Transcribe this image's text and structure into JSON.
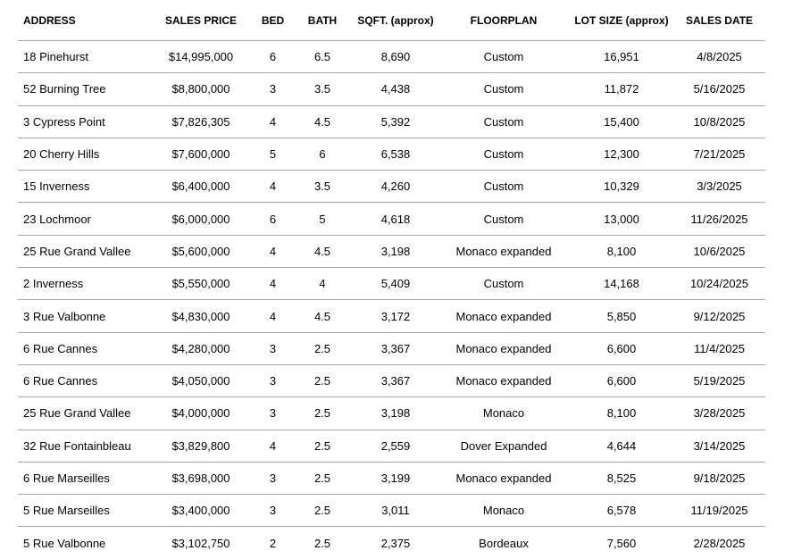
{
  "table": {
    "header": [
      "ADDRESS",
      "SALES PRICE",
      "BED",
      "BATH",
      "SQFT. (approx)",
      "FLOORPLAN",
      "LOT SIZE (approx)",
      "SALES DATE"
    ],
    "rows": [
      [
        "18 Pinehurst",
        "$14,995,000",
        "6",
        "6.5",
        "8,690",
        "Custom",
        "16,951",
        "4/8/2025"
      ],
      [
        "52 Burning Tree",
        "$8,800,000",
        "3",
        "3.5",
        "4,438",
        "Custom",
        "11,872",
        "5/16/2025"
      ],
      [
        "3 Cypress Point",
        "$7,826,305",
        "4",
        "4.5",
        "5,392",
        "Custom",
        "15,400",
        "10/8/2025"
      ],
      [
        "20 Cherry Hills",
        "$7,600,000",
        "5",
        "6",
        "6,538",
        "Custom",
        "12,300",
        "7/21/2025"
      ],
      [
        "15 Inverness",
        "$6,400,000",
        "4",
        "3.5",
        "4,260",
        "Custom",
        "10,329",
        "3/3/2025"
      ],
      [
        "23 Lochmoor",
        "$6,000,000",
        "6",
        "5",
        "4,618",
        "Custom",
        "13,000",
        "11/26/2025"
      ],
      [
        "25 Rue Grand Vallee",
        "$5,600,000",
        "4",
        "4.5",
        "3,198",
        "Monaco expanded",
        "8,100",
        "10/6/2025"
      ],
      [
        "2 Inverness",
        "$5,550,000",
        "4",
        "4",
        "5,409",
        "Custom",
        "14,168",
        "10/24/2025"
      ],
      [
        "3 Rue Valbonne",
        "$4,830,000",
        "4",
        "4.5",
        "3,172",
        "Monaco expanded",
        "5,850",
        "9/12/2025"
      ],
      [
        "6 Rue Cannes",
        "$4,280,000",
        "3",
        "2.5",
        "3,367",
        "Monaco expanded",
        "6,600",
        "11/4/2025"
      ],
      [
        "6 Rue Cannes",
        "$4,050,000",
        "3",
        "2.5",
        "3,367",
        "Monaco expanded",
        "6,600",
        "5/19/2025"
      ],
      [
        "25 Rue Grand Vallee",
        "$4,000,000",
        "3",
        "2.5",
        "3,198",
        "Monaco",
        "8,100",
        "3/28/2025"
      ],
      [
        "32 Rue Fontainbleau",
        "$3,829,800",
        "4",
        "2.5",
        "2,559",
        "Dover Expanded",
        "4,644",
        "3/14/2025"
      ],
      [
        "6 Rue Marseilles",
        "$3,698,000",
        "3",
        "2.5",
        "3,199",
        "Monaco expanded",
        "8,525",
        "9/18/2025"
      ],
      [
        "5 Rue Marseilles",
        "$3,400,000",
        "3",
        "2.5",
        "3,011",
        "Monaco",
        "6,578",
        "11/19/2025"
      ],
      [
        "5 Rue Valbonne",
        "$3,102,750",
        "2",
        "2.5",
        "2,375",
        "Bordeaux",
        "7,560",
        "2/28/2025"
      ]
    ]
  }
}
